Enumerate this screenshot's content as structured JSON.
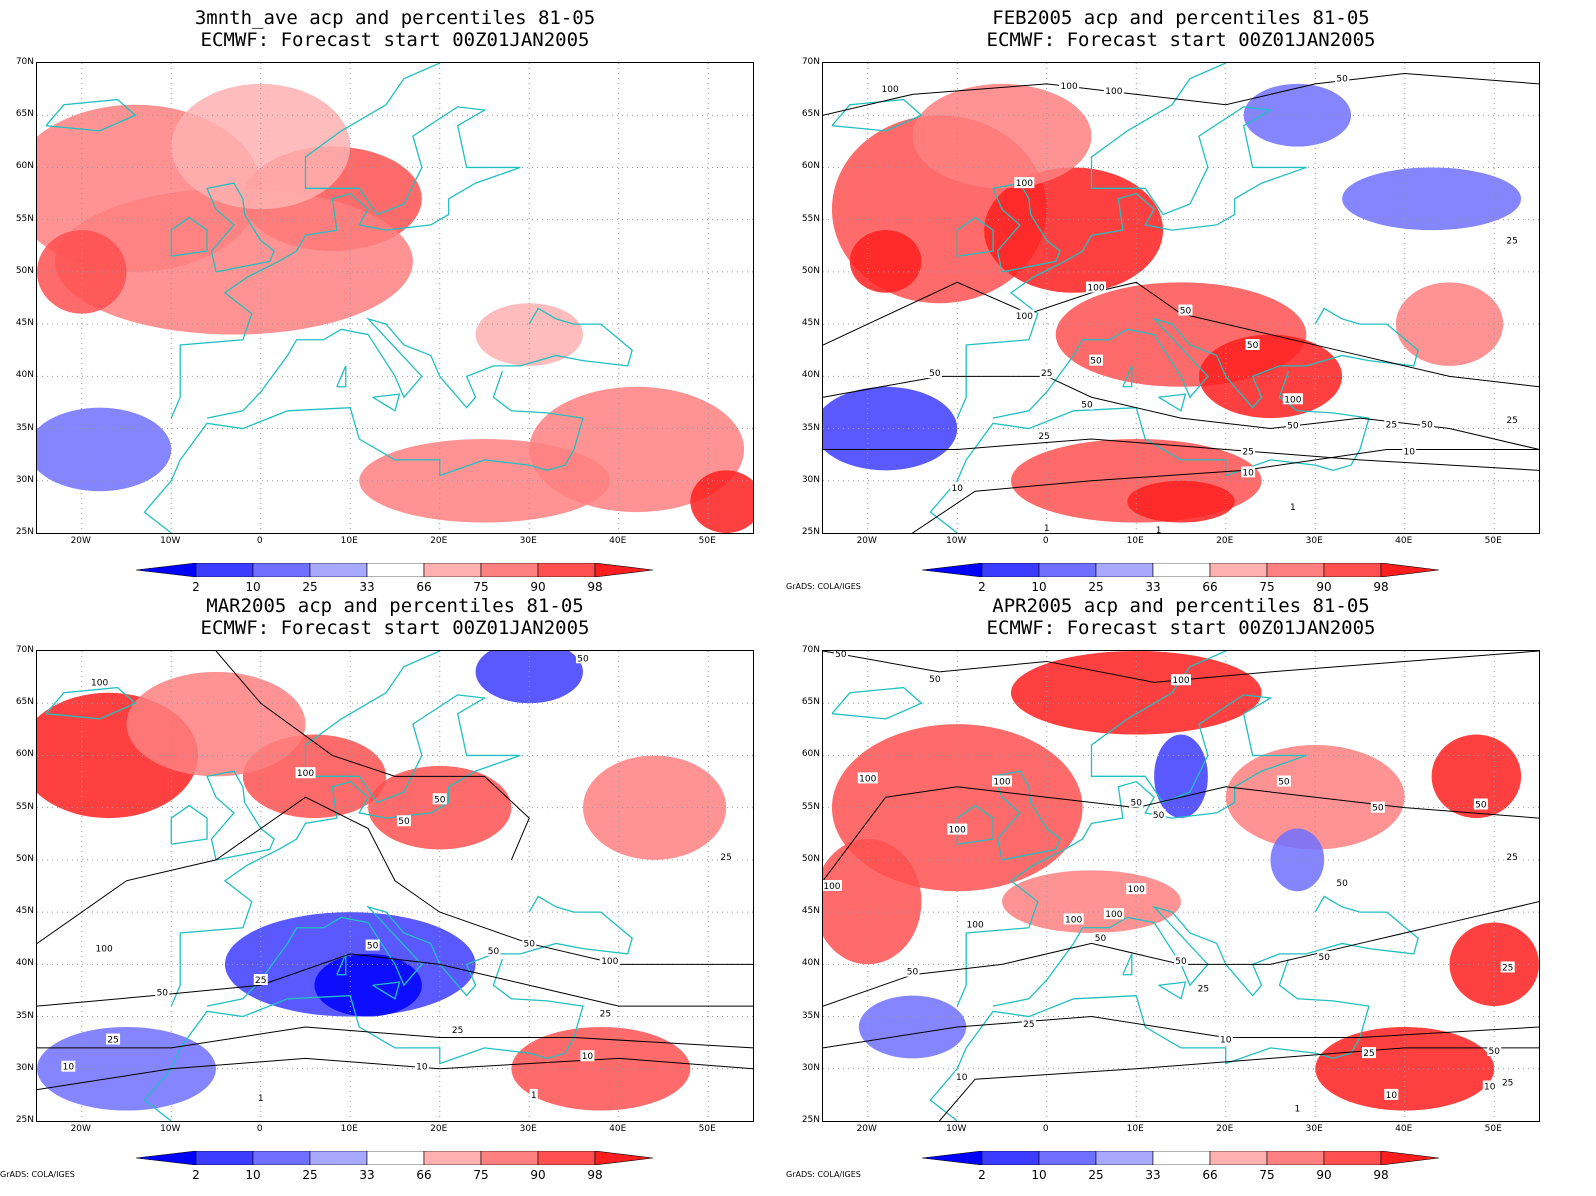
{
  "credit": "GrADS: COLA/IGES",
  "lat_labels": [
    "70N",
    "65N",
    "60N",
    "55N",
    "50N",
    "45N",
    "40N",
    "35N",
    "30N",
    "25N"
  ],
  "lon_labels": [
    "20W",
    "10W",
    "0",
    "10E",
    "20E",
    "30E",
    "40E",
    "50E"
  ],
  "colorbar": {
    "labels": [
      "2",
      "10",
      "25",
      "33",
      "66",
      "75",
      "90",
      "98"
    ],
    "colors": [
      "#0000ff",
      "#3c3cff",
      "#7070ff",
      "#a8a8ff",
      "#ffffff",
      "#ffb0b0",
      "#ff8080",
      "#ff5050",
      "#ff1e1e"
    ]
  },
  "colors": {
    "coastline": "#20c0c0",
    "contour": "#000000"
  },
  "panels": [
    {
      "title1": "3mnth_ave acp and percentiles 81-05",
      "title2": "ECMWF: Forecast start 00Z01JAN2005",
      "show_credit": false,
      "contour_labels": []
    },
    {
      "title1": "FEB2005 acp and percentiles 81-05",
      "title2": "ECMWF: Forecast start 00Z01JAN2005",
      "show_credit": true,
      "contour_labels": [
        {
          "text": "100",
          "lon": -17.5,
          "lat": 67.5
        },
        {
          "text": "100",
          "lon": 2.5,
          "lat": 67.8
        },
        {
          "text": "100",
          "lon": 7.5,
          "lat": 67.3
        },
        {
          "text": "50",
          "lon": 33,
          "lat": 68.5
        },
        {
          "text": "100",
          "lon": -2.5,
          "lat": 58.5
        },
        {
          "text": "25",
          "lon": 52,
          "lat": 53
        },
        {
          "text": "100",
          "lon": 5.5,
          "lat": 48.5
        },
        {
          "text": "100",
          "lon": -2.5,
          "lat": 45.8
        },
        {
          "text": "50",
          "lon": 15.5,
          "lat": 46.3
        },
        {
          "text": "50",
          "lon": 5.5,
          "lat": 41.5
        },
        {
          "text": "50",
          "lon": -12.5,
          "lat": 40.3
        },
        {
          "text": "25",
          "lon": 0,
          "lat": 40.3
        },
        {
          "text": "50",
          "lon": 4.5,
          "lat": 37.3
        },
        {
          "text": "25",
          "lon": -0.3,
          "lat": 34.3
        },
        {
          "text": "50",
          "lon": 23,
          "lat": 43
        },
        {
          "text": "100",
          "lon": 27.5,
          "lat": 37.8
        },
        {
          "text": "50",
          "lon": 27.5,
          "lat": 35.3
        },
        {
          "text": "25",
          "lon": 38.5,
          "lat": 35.4
        },
        {
          "text": "50",
          "lon": 42.5,
          "lat": 35.4
        },
        {
          "text": "25",
          "lon": 52,
          "lat": 35.8
        },
        {
          "text": "25",
          "lon": 22.5,
          "lat": 32.8
        },
        {
          "text": "10",
          "lon": 22.5,
          "lat": 30.8
        },
        {
          "text": "10",
          "lon": 40.5,
          "lat": 32.8
        },
        {
          "text": "10",
          "lon": -10,
          "lat": 29.3
        },
        {
          "text": "1",
          "lon": 27.5,
          "lat": 27.5
        },
        {
          "text": "1",
          "lon": 0,
          "lat": 25.5
        },
        {
          "text": "1",
          "lon": 12.5,
          "lat": 25.3
        }
      ]
    },
    {
      "title1": "MAR2005 acp and percentiles 81-05",
      "title2": "ECMWF: Forecast start 00Z01JAN2005",
      "show_credit": true,
      "contour_labels": [
        {
          "text": "100",
          "lon": -18,
          "lat": 67
        },
        {
          "text": "50",
          "lon": 36,
          "lat": 69.3
        },
        {
          "text": "100",
          "lon": 5,
          "lat": 58.3
        },
        {
          "text": "50",
          "lon": 20,
          "lat": 55.8
        },
        {
          "text": "50",
          "lon": 16,
          "lat": 53.7
        },
        {
          "text": "25",
          "lon": 52,
          "lat": 50.3
        },
        {
          "text": "100",
          "lon": -17.5,
          "lat": 41.5
        },
        {
          "text": "50",
          "lon": 12.5,
          "lat": 41.8
        },
        {
          "text": "50",
          "lon": 26,
          "lat": 41.3
        },
        {
          "text": "50",
          "lon": 30,
          "lat": 42
        },
        {
          "text": "100",
          "lon": 39,
          "lat": 40.3
        },
        {
          "text": "25",
          "lon": 0,
          "lat": 38.5
        },
        {
          "text": "50",
          "lon": -11,
          "lat": 37.3
        },
        {
          "text": "25",
          "lon": 38.5,
          "lat": 35.3
        },
        {
          "text": "25",
          "lon": -16.5,
          "lat": 32.8
        },
        {
          "text": "25",
          "lon": 22,
          "lat": 33.7
        },
        {
          "text": "10",
          "lon": -21.5,
          "lat": 30.2
        },
        {
          "text": "10",
          "lon": 36.5,
          "lat": 31.2
        },
        {
          "text": "10",
          "lon": 18,
          "lat": 30.2
        },
        {
          "text": "1",
          "lon": 0,
          "lat": 27.2
        },
        {
          "text": "1",
          "lon": 30.5,
          "lat": 27.5
        }
      ]
    },
    {
      "title1": "APR2005 acp and percentiles 81-05",
      "title2": "ECMWF: Forecast start 00Z01JAN2005",
      "show_credit": true,
      "contour_labels": [
        {
          "text": "50",
          "lon": -23,
          "lat": 69.7
        },
        {
          "text": "50",
          "lon": -12.5,
          "lat": 67.3
        },
        {
          "text": "100",
          "lon": 15,
          "lat": 67.2
        },
        {
          "text": "100",
          "lon": -20,
          "lat": 57.8
        },
        {
          "text": "100",
          "lon": -5,
          "lat": 57.5
        },
        {
          "text": "50",
          "lon": 26.5,
          "lat": 57.5
        },
        {
          "text": "50",
          "lon": 10,
          "lat": 55.5
        },
        {
          "text": "50",
          "lon": 12.5,
          "lat": 54.3
        },
        {
          "text": "50",
          "lon": 48.5,
          "lat": 55.3
        },
        {
          "text": "50",
          "lon": 37,
          "lat": 55
        },
        {
          "text": "100",
          "lon": -10,
          "lat": 52.9
        },
        {
          "text": "100",
          "lon": -24,
          "lat": 47.5
        },
        {
          "text": "25",
          "lon": 52,
          "lat": 50.3
        },
        {
          "text": "100",
          "lon": 10,
          "lat": 47.2
        },
        {
          "text": "50",
          "lon": 33,
          "lat": 47.8
        },
        {
          "text": "100",
          "lon": 3,
          "lat": 44.3
        },
        {
          "text": "100",
          "lon": 7.5,
          "lat": 44.8
        },
        {
          "text": "100",
          "lon": -8,
          "lat": 43.8
        },
        {
          "text": "50",
          "lon": 6,
          "lat": 42.5
        },
        {
          "text": "50",
          "lon": 15,
          "lat": 40.3
        },
        {
          "text": "50",
          "lon": 31,
          "lat": 40.7
        },
        {
          "text": "50",
          "lon": -15,
          "lat": 39.3
        },
        {
          "text": "25",
          "lon": 17.5,
          "lat": 37.7
        },
        {
          "text": "25",
          "lon": 51.5,
          "lat": 39.7
        },
        {
          "text": "25",
          "lon": -2,
          "lat": 34.3
        },
        {
          "text": "10",
          "lon": 20,
          "lat": 32.8
        },
        {
          "text": "25",
          "lon": 36,
          "lat": 31.5
        },
        {
          "text": "50",
          "lon": 50,
          "lat": 31.7
        },
        {
          "text": "10",
          "lon": -9.5,
          "lat": 29.2
        },
        {
          "text": "10",
          "lon": 38.5,
          "lat": 27.5
        },
        {
          "text": "25",
          "lon": 51.5,
          "lat": 28.7
        },
        {
          "text": "10",
          "lon": 49.5,
          "lat": 28.3
        },
        {
          "text": "1",
          "lon": 28,
          "lat": 26.2
        }
      ]
    }
  ]
}
